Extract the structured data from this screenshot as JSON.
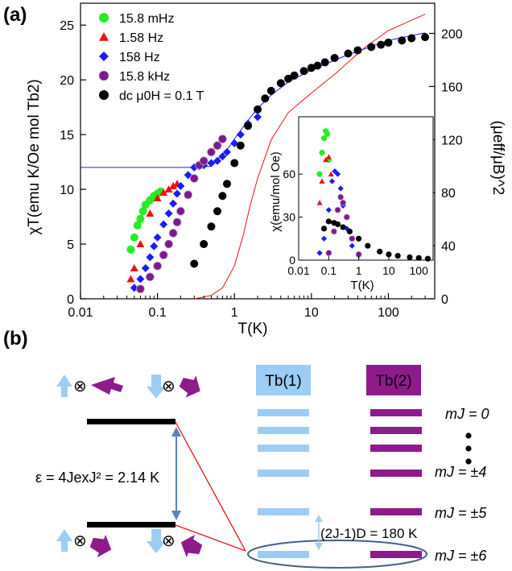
{
  "panel_a": {
    "label": "(a)"
  },
  "panel_b": {
    "label": "(b)"
  },
  "colors": {
    "green": "#22ee22",
    "red": "#ee1111",
    "blue": "#1a1aff",
    "purple": "#7a1a8c",
    "black": "#000000",
    "tb1": "#9ccdf5",
    "tb2": "#8e1a8c",
    "ellipse": "#44608a",
    "arrow_blue": "#5a7fc4"
  },
  "chart_data": [
    {
      "type": "scatter",
      "title": "",
      "xscale": "log",
      "xlim": [
        0.01,
        400
      ],
      "ylim": [
        0,
        27
      ],
      "xlabel": "T(K)",
      "ylabel": "χT(emu K/Oe mol Tb2)",
      "y2label": "(μeff/μB)^2",
      "y2ticks": [
        0,
        40,
        80,
        120,
        160,
        200
      ],
      "xtick_labels": [
        "0.01",
        "0.1",
        "1",
        "10",
        "100"
      ],
      "ytick_labels": [
        "0",
        "5",
        "10",
        "15",
        "20",
        "25"
      ],
      "legend": [
        {
          "label": "15.8 mHz",
          "marker": "circle",
          "color": "#22ee22"
        },
        {
          "label": "1.58 Hz",
          "marker": "triangle",
          "color": "#ee1111"
        },
        {
          "label": "158 Hz",
          "marker": "diamond",
          "color": "#1a1aff"
        },
        {
          "label": "15.8 kHz",
          "marker": "sphere",
          "color": "#7a1a8c"
        },
        {
          "label": "dc μ0H = 0.1 T",
          "marker": "circle",
          "color": "#000000"
        }
      ],
      "series": [
        {
          "name": "15.8 mHz",
          "x": [
            0.045,
            0.05,
            0.055,
            0.06,
            0.065,
            0.07,
            0.08,
            0.09,
            0.1,
            0.11
          ],
          "y": [
            4.5,
            5.6,
            6.7,
            7.3,
            8.0,
            8.6,
            9.0,
            9.4,
            9.6,
            9.8
          ]
        },
        {
          "name": "1.58 Hz",
          "x": [
            0.045,
            0.05,
            0.06,
            0.08,
            0.1,
            0.12,
            0.14,
            0.16,
            0.18
          ],
          "y": [
            1.8,
            2.8,
            5.0,
            7.8,
            9.2,
            9.7,
            10.0,
            10.3,
            10.5
          ]
        },
        {
          "name": "158 Hz",
          "x": [
            0.05,
            0.06,
            0.07,
            0.08,
            0.09,
            0.1,
            0.12,
            0.14,
            0.16,
            0.18,
            0.2,
            0.25,
            0.3,
            0.35,
            0.4,
            0.5,
            0.6,
            0.7,
            0.8,
            1.0,
            1.2,
            1.5,
            2.0
          ],
          "y": [
            1.0,
            1.8,
            2.8,
            3.8,
            4.8,
            5.6,
            6.8,
            7.8,
            8.7,
            9.6,
            10.3,
            11.3,
            12.0,
            12.1,
            12.2,
            12.4,
            12.6,
            13.0,
            13.4,
            14.2,
            15.0,
            16.0,
            16.6
          ]
        },
        {
          "name": "15.8 kHz",
          "x": [
            0.06,
            0.08,
            0.1,
            0.12,
            0.14,
            0.16,
            0.18,
            0.2,
            0.25,
            0.3,
            0.35,
            0.4,
            0.5,
            0.6,
            0.7
          ],
          "y": [
            0.9,
            2.0,
            3.0,
            4.0,
            5.0,
            6.0,
            7.0,
            8.0,
            9.5,
            11.0,
            12.2,
            12.6,
            13.4,
            14.0,
            14.6
          ]
        },
        {
          "name": "dc μ0H = 0.1 T",
          "x": [
            0.3,
            0.4,
            0.5,
            0.6,
            0.7,
            0.8,
            1.0,
            1.2,
            1.5,
            2.0,
            2.5,
            3,
            4,
            5,
            6,
            8,
            10,
            12,
            15,
            20,
            30,
            40,
            60,
            80,
            100,
            150,
            200,
            300
          ],
          "y": [
            3.2,
            5.0,
            6.6,
            8.0,
            9.4,
            10.5,
            12.4,
            14.0,
            15.8,
            17.3,
            18.3,
            19.0,
            19.7,
            20.1,
            20.4,
            20.8,
            21.1,
            21.3,
            21.6,
            22.0,
            22.4,
            22.7,
            23.0,
            23.2,
            23.4,
            23.6,
            23.8,
            23.9
          ]
        },
        {
          "name": "fit (red)",
          "x": [
            0.3,
            0.5,
            0.7,
            1.0,
            1.3,
            1.6,
            2.0,
            3,
            5,
            10,
            20,
            50,
            100,
            300
          ],
          "y": [
            0,
            0.3,
            1.0,
            3.0,
            5.8,
            8.5,
            11.0,
            14.5,
            17.0,
            18.8,
            20.5,
            23.0,
            24.5,
            26.0
          ]
        },
        {
          "name": "fit (blue)",
          "x": [
            0.01,
            0.1,
            0.3,
            0.5,
            0.8,
            1.0,
            1.5,
            2.0,
            3,
            5,
            10,
            30,
            100,
            300
          ],
          "y": [
            12.0,
            12.0,
            12.0,
            12.1,
            13.6,
            14.6,
            16.3,
            17.4,
            18.6,
            19.8,
            20.9,
            22.3,
            23.6,
            24.3
          ]
        }
      ]
    },
    {
      "type": "scatter",
      "title": "",
      "xscale": "log",
      "xlim": [
        0.01,
        300
      ],
      "ylim": [
        0,
        100
      ],
      "xlabel": "T(K)",
      "ylabel": "χ(emu/mol Oe)",
      "xtick_labels": [
        "0.01",
        "0.1",
        "1",
        "10",
        "100"
      ],
      "ytick_labels": [
        "0",
        "30",
        "60"
      ],
      "series": [
        {
          "name": "15.8 mHz",
          "x": [
            0.05,
            0.06,
            0.07,
            0.08,
            0.09,
            0.1
          ],
          "y": [
            60,
            75,
            85,
            90,
            88,
            70
          ]
        },
        {
          "name": "1.58 Hz",
          "x": [
            0.05,
            0.06,
            0.08,
            0.1,
            0.12
          ],
          "y": [
            40,
            55,
            70,
            72,
            60
          ]
        },
        {
          "name": "158 Hz",
          "x": [
            0.05,
            0.07,
            0.1,
            0.13,
            0.16,
            0.2,
            0.25,
            0.3,
            0.4,
            0.6,
            1.0
          ],
          "y": [
            5,
            15,
            35,
            55,
            62,
            60,
            50,
            38,
            22,
            10,
            3
          ]
        },
        {
          "name": "15.8 kHz",
          "x": [
            0.1,
            0.15,
            0.2,
            0.25,
            0.3,
            0.4,
            0.6,
            1.0
          ],
          "y": [
            5,
            20,
            35,
            44,
            40,
            30,
            15,
            4
          ]
        },
        {
          "name": "dc",
          "x": [
            0.07,
            0.1,
            0.15,
            0.2,
            0.3,
            0.5,
            1,
            2,
            5,
            10,
            20,
            50,
            100,
            200
          ],
          "y": [
            22,
            27,
            26,
            25,
            23,
            20,
            15,
            10,
            6,
            4,
            3,
            2,
            1.5,
            1
          ]
        }
      ]
    }
  ],
  "diagram": {
    "equation": "ε = 4JexJ² = 2.14 K",
    "tb1_label": "Tb(1)",
    "tb2_label": "Tb(2)",
    "mj_labels": [
      "mJ = 0",
      "mJ = ±4",
      "mJ = ±5",
      "mJ = ±6"
    ],
    "gap_label": "(2J-1)D = 180 K",
    "otimes": "⊗"
  }
}
